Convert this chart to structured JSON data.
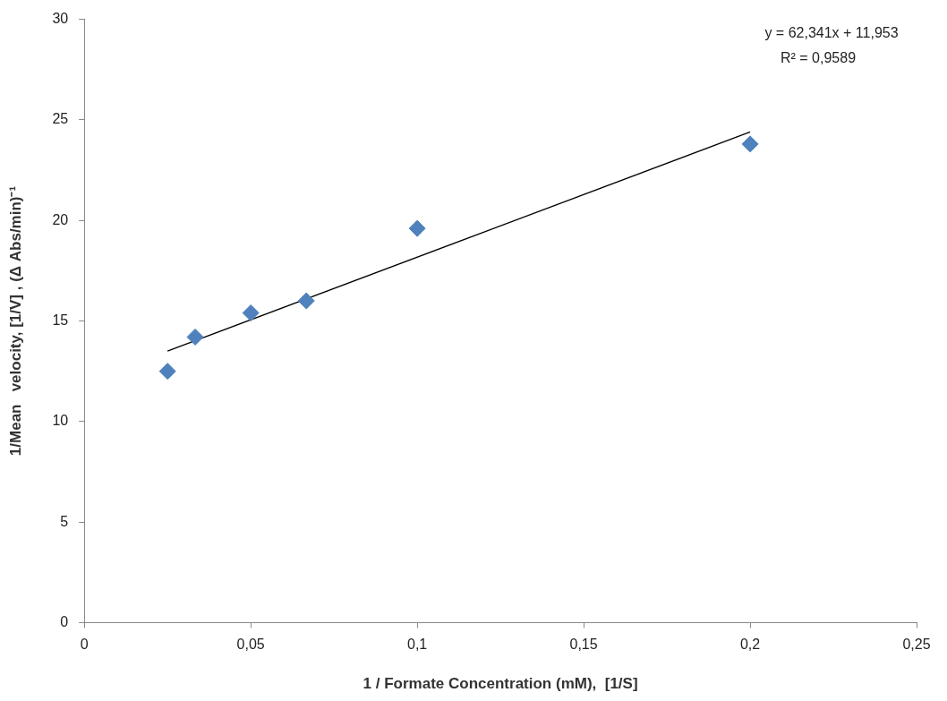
{
  "chart_data": {
    "type": "scatter",
    "xlabel": "1 / Formate Concentration (mM),  [1/S]",
    "ylabel": "1/Mean   velocity, [1/V] , (Δ Abs/min)⁻¹",
    "x": [
      0.025,
      0.0333,
      0.05,
      0.0667,
      0.1,
      0.2
    ],
    "series": [
      {
        "type": "scatter",
        "color": "#4f81bd",
        "marker": "diamond",
        "values": [
          12.5,
          14.2,
          15.4,
          16.0,
          19.6,
          23.8
        ]
      },
      {
        "type": "line",
        "color": "#000000",
        "marker": "none",
        "line_style": "solid",
        "x": [
          0.025,
          0.2
        ],
        "values": [
          13.5,
          24.4
        ]
      }
    ],
    "xlim": [
      0,
      0.25
    ],
    "xticks": [
      0,
      {
        "value": 0.05,
        "label": "0,05"
      },
      {
        "value": 0.1,
        "label": "0,1"
      },
      {
        "value": 0.15,
        "label": "0,15"
      },
      {
        "value": 0.2,
        "label": "0,2"
      },
      {
        "value": 0.25,
        "label": "0,25"
      }
    ],
    "ylim": [
      0,
      30
    ],
    "yticks": [
      0,
      5,
      10,
      15,
      20,
      25,
      30
    ],
    "grid": false,
    "legend": false,
    "annotations": [
      "y = 62,341x + 11,953",
      "R² = 0,9589"
    ]
  }
}
